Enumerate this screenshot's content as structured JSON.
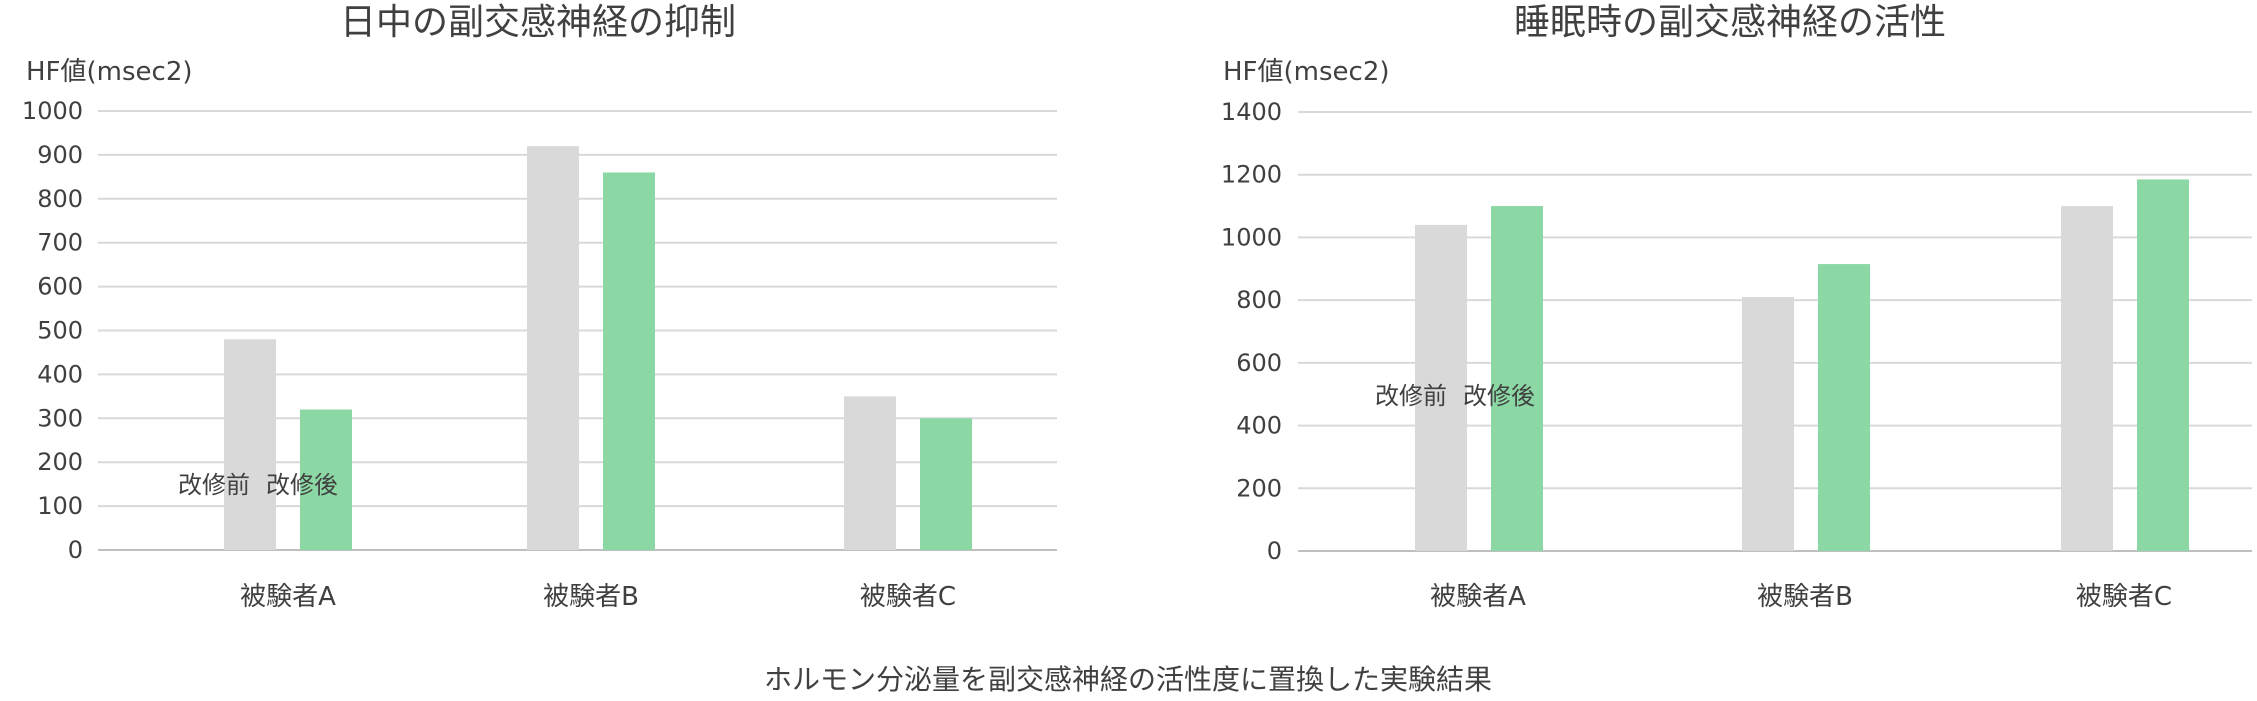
{
  "caption": "ホルモン分泌量を副交感神経の活性度に置換した実験結果",
  "series_colors": [
    "#d9d9d9",
    "#8bd8a4"
  ],
  "chart_data": [
    {
      "type": "bar",
      "title": "日中の副交感神経の抑制",
      "ylabel": "HF値(msec2)",
      "xlabel": "",
      "categories": [
        "被験者A",
        "被験者B",
        "被験者C"
      ],
      "ylim": [
        0,
        1000
      ],
      "yticks": [
        0,
        100,
        200,
        300,
        400,
        500,
        600,
        700,
        800,
        900,
        1000
      ],
      "grid": true,
      "legend": {
        "entries": [
          "改修前",
          "改修後"
        ],
        "placement": "inside-left"
      },
      "series": [
        {
          "name": "改修前",
          "values": [
            480,
            920,
            350
          ]
        },
        {
          "name": "改修後",
          "values": [
            320,
            860,
            300
          ]
        }
      ]
    },
    {
      "type": "bar",
      "title": "睡眠時の副交感神経の活性",
      "ylabel": "HF値(msec2)",
      "xlabel": "",
      "categories": [
        "被験者A",
        "被験者B",
        "被験者C"
      ],
      "ylim": [
        0,
        1400
      ],
      "yticks": [
        0,
        200,
        400,
        600,
        800,
        1000,
        1200,
        1400
      ],
      "grid": true,
      "legend": {
        "entries": [
          "改修前",
          "改修後"
        ],
        "placement": "inside-left"
      },
      "series": [
        {
          "name": "改修前",
          "values": [
            1040,
            810,
            1100
          ]
        },
        {
          "name": "改修後",
          "values": [
            1100,
            915,
            1185
          ]
        }
      ]
    }
  ]
}
